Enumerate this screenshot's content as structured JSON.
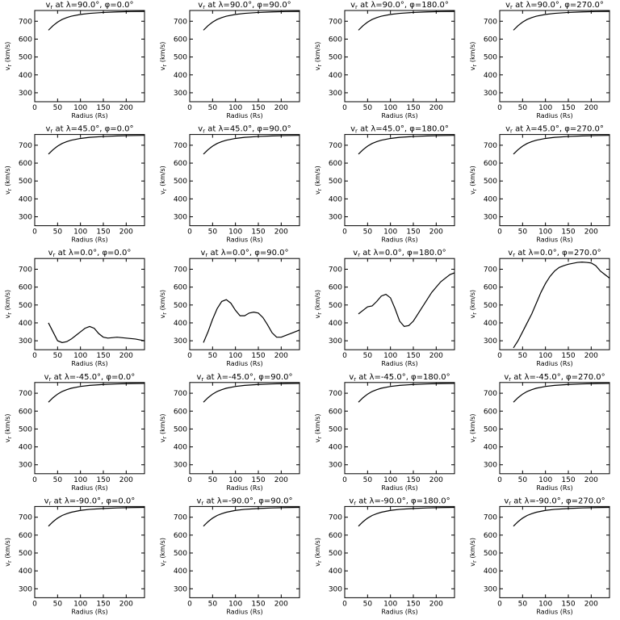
{
  "chart_data": [
    {
      "type": "line",
      "title": [
        "v",
        "r",
        " at λ=90.0°, φ=0.0°"
      ],
      "xlabel": "Radius (Rs)",
      "ylabel": [
        "v",
        "r",
        " (km/s)"
      ],
      "xlim": [
        0,
        240
      ],
      "ylim": [
        250,
        760
      ],
      "xticks": [
        0,
        50,
        100,
        150,
        200
      ],
      "yticks": [
        300,
        400,
        500,
        600,
        700
      ],
      "color": "#000000",
      "x": [
        30,
        40,
        50,
        60,
        70,
        80,
        100,
        120,
        150,
        180,
        210,
        240
      ],
      "values": [
        650,
        675,
        695,
        710,
        720,
        728,
        738,
        744,
        749,
        752,
        754,
        755
      ]
    },
    {
      "type": "line",
      "title": [
        "v",
        "r",
        " at λ=90.0°, φ=90.0°"
      ],
      "xlabel": "Radius (Rs)",
      "ylabel": [
        "v",
        "r",
        " (km/s)"
      ],
      "xlim": [
        0,
        240
      ],
      "ylim": [
        250,
        760
      ],
      "xticks": [
        0,
        50,
        100,
        150,
        200
      ],
      "yticks": [
        300,
        400,
        500,
        600,
        700
      ],
      "color": "#000000",
      "x": [
        30,
        40,
        50,
        60,
        70,
        80,
        100,
        120,
        150,
        180,
        210,
        240
      ],
      "values": [
        650,
        675,
        695,
        710,
        720,
        728,
        738,
        744,
        749,
        752,
        754,
        755
      ]
    },
    {
      "type": "line",
      "title": [
        "v",
        "r",
        " at λ=90.0°, φ=180.0°"
      ],
      "xlabel": "Radius (Rs)",
      "ylabel": [
        "v",
        "r",
        " (km/s)"
      ],
      "xlim": [
        0,
        240
      ],
      "ylim": [
        250,
        760
      ],
      "xticks": [
        0,
        50,
        100,
        150,
        200
      ],
      "yticks": [
        300,
        400,
        500,
        600,
        700
      ],
      "color": "#000000",
      "x": [
        30,
        40,
        50,
        60,
        70,
        80,
        100,
        120,
        150,
        180,
        210,
        240
      ],
      "values": [
        650,
        675,
        695,
        710,
        720,
        728,
        738,
        744,
        749,
        752,
        754,
        755
      ]
    },
    {
      "type": "line",
      "title": [
        "v",
        "r",
        " at λ=90.0°, φ=270.0°"
      ],
      "xlabel": "Radius (Rs)",
      "ylabel": [
        "v",
        "r",
        " (km/s)"
      ],
      "xlim": [
        0,
        240
      ],
      "ylim": [
        250,
        760
      ],
      "xticks": [
        0,
        50,
        100,
        150,
        200
      ],
      "yticks": [
        300,
        400,
        500,
        600,
        700
      ],
      "color": "#000000",
      "x": [
        30,
        40,
        50,
        60,
        70,
        80,
        100,
        120,
        150,
        180,
        210,
        240
      ],
      "values": [
        650,
        675,
        695,
        710,
        720,
        728,
        738,
        744,
        749,
        752,
        754,
        755
      ]
    },
    {
      "type": "line",
      "title": [
        "v",
        "r",
        " at λ=45.0°, φ=0.0°"
      ],
      "xlabel": "Radius (Rs)",
      "ylabel": [
        "v",
        "r",
        " (km/s)"
      ],
      "xlim": [
        0,
        240
      ],
      "ylim": [
        250,
        760
      ],
      "xticks": [
        0,
        50,
        100,
        150,
        200
      ],
      "yticks": [
        300,
        400,
        500,
        600,
        700
      ],
      "color": "#000000",
      "x": [
        30,
        40,
        50,
        60,
        70,
        80,
        100,
        120,
        150,
        180,
        210,
        240
      ],
      "values": [
        650,
        675,
        695,
        710,
        720,
        728,
        738,
        744,
        749,
        752,
        754,
        755
      ]
    },
    {
      "type": "line",
      "title": [
        "v",
        "r",
        " at λ=45.0°, φ=90.0°"
      ],
      "xlabel": "Radius (Rs)",
      "ylabel": [
        "v",
        "r",
        " (km/s)"
      ],
      "xlim": [
        0,
        240
      ],
      "ylim": [
        250,
        760
      ],
      "xticks": [
        0,
        50,
        100,
        150,
        200
      ],
      "yticks": [
        300,
        400,
        500,
        600,
        700
      ],
      "color": "#000000",
      "x": [
        30,
        40,
        50,
        60,
        70,
        80,
        100,
        120,
        150,
        180,
        210,
        240
      ],
      "values": [
        650,
        675,
        695,
        710,
        720,
        728,
        738,
        744,
        749,
        752,
        754,
        755
      ]
    },
    {
      "type": "line",
      "title": [
        "v",
        "r",
        " at λ=45.0°, φ=180.0°"
      ],
      "xlabel": "Radius (Rs)",
      "ylabel": [
        "v",
        "r",
        " (km/s)"
      ],
      "xlim": [
        0,
        240
      ],
      "ylim": [
        250,
        760
      ],
      "xticks": [
        0,
        50,
        100,
        150,
        200
      ],
      "yticks": [
        300,
        400,
        500,
        600,
        700
      ],
      "color": "#000000",
      "x": [
        30,
        40,
        50,
        60,
        70,
        80,
        100,
        120,
        150,
        180,
        210,
        240
      ],
      "values": [
        650,
        675,
        695,
        710,
        720,
        728,
        738,
        744,
        749,
        752,
        754,
        755
      ]
    },
    {
      "type": "line",
      "title": [
        "v",
        "r",
        " at λ=45.0°, φ=270.0°"
      ],
      "xlabel": "Radius (Rs)",
      "ylabel": [
        "v",
        "r",
        " (km/s)"
      ],
      "xlim": [
        0,
        240
      ],
      "ylim": [
        250,
        760
      ],
      "xticks": [
        0,
        50,
        100,
        150,
        200
      ],
      "yticks": [
        300,
        400,
        500,
        600,
        700
      ],
      "color": "#000000",
      "x": [
        30,
        40,
        50,
        60,
        70,
        80,
        100,
        120,
        150,
        180,
        210,
        240
      ],
      "values": [
        650,
        675,
        695,
        710,
        720,
        728,
        738,
        744,
        749,
        752,
        754,
        755
      ]
    },
    {
      "type": "line",
      "title": [
        "v",
        "r",
        " at λ=0.0°, φ=0.0°"
      ],
      "xlabel": "Radius (Rs)",
      "ylabel": [
        "v",
        "r",
        " (km/s)"
      ],
      "xlim": [
        0,
        240
      ],
      "ylim": [
        250,
        760
      ],
      "xticks": [
        0,
        50,
        100,
        150,
        200
      ],
      "yticks": [
        300,
        400,
        500,
        600,
        700
      ],
      "color": "#000000",
      "x": [
        30,
        40,
        50,
        60,
        70,
        80,
        90,
        100,
        110,
        120,
        130,
        140,
        150,
        160,
        180,
        200,
        220,
        240
      ],
      "values": [
        400,
        350,
        300,
        290,
        295,
        310,
        330,
        350,
        370,
        380,
        370,
        340,
        320,
        315,
        320,
        315,
        310,
        300
      ]
    },
    {
      "type": "line",
      "title": [
        "v",
        "r",
        " at λ=0.0°, φ=90.0°"
      ],
      "xlabel": "Radius (Rs)",
      "ylabel": [
        "v",
        "r",
        " (km/s)"
      ],
      "xlim": [
        0,
        240
      ],
      "ylim": [
        250,
        760
      ],
      "xticks": [
        0,
        50,
        100,
        150,
        200
      ],
      "yticks": [
        300,
        400,
        500,
        600,
        700
      ],
      "color": "#000000",
      "x": [
        30,
        40,
        50,
        60,
        70,
        80,
        90,
        100,
        110,
        120,
        130,
        140,
        150,
        160,
        170,
        180,
        190,
        200,
        210,
        220,
        240
      ],
      "values": [
        290,
        350,
        420,
        480,
        520,
        530,
        510,
        470,
        440,
        440,
        455,
        460,
        455,
        430,
        390,
        345,
        320,
        320,
        330,
        340,
        360
      ]
    },
    {
      "type": "line",
      "title": [
        "v",
        "r",
        " at λ=0.0°, φ=180.0°"
      ],
      "xlabel": "Radius (Rs)",
      "ylabel": [
        "v",
        "r",
        " (km/s)"
      ],
      "xlim": [
        0,
        240
      ],
      "ylim": [
        250,
        760
      ],
      "xticks": [
        0,
        50,
        100,
        150,
        200
      ],
      "yticks": [
        300,
        400,
        500,
        600,
        700
      ],
      "color": "#000000",
      "x": [
        30,
        40,
        50,
        60,
        70,
        80,
        90,
        100,
        110,
        120,
        130,
        140,
        150,
        160,
        170,
        180,
        190,
        200,
        210,
        220,
        230,
        240
      ],
      "values": [
        450,
        470,
        490,
        495,
        520,
        550,
        560,
        540,
        480,
        410,
        380,
        385,
        410,
        450,
        490,
        530,
        570,
        600,
        630,
        650,
        670,
        680
      ]
    },
    {
      "type": "line",
      "title": [
        "v",
        "r",
        " at λ=0.0°, φ=270.0°"
      ],
      "xlabel": "Radius (Rs)",
      "ylabel": [
        "v",
        "r",
        " (km/s)"
      ],
      "xlim": [
        0,
        240
      ],
      "ylim": [
        250,
        760
      ],
      "xticks": [
        0,
        50,
        100,
        150,
        200
      ],
      "yticks": [
        300,
        400,
        500,
        600,
        700
      ],
      "color": "#000000",
      "x": [
        30,
        40,
        50,
        60,
        70,
        80,
        90,
        100,
        110,
        120,
        130,
        140,
        150,
        160,
        170,
        180,
        190,
        200,
        210,
        220,
        230,
        240
      ],
      "values": [
        260,
        300,
        350,
        400,
        450,
        510,
        570,
        620,
        660,
        690,
        710,
        720,
        728,
        733,
        738,
        740,
        738,
        735,
        720,
        690,
        670,
        650
      ]
    },
    {
      "type": "line",
      "title": [
        "v",
        "r",
        " at λ=-45.0°, φ=0.0°"
      ],
      "xlabel": "Radius (Rs)",
      "ylabel": [
        "v",
        "r",
        " (km/s)"
      ],
      "xlim": [
        0,
        240
      ],
      "ylim": [
        250,
        760
      ],
      "xticks": [
        0,
        50,
        100,
        150,
        200
      ],
      "yticks": [
        300,
        400,
        500,
        600,
        700
      ],
      "color": "#000000",
      "x": [
        30,
        40,
        50,
        60,
        70,
        80,
        100,
        120,
        150,
        180,
        210,
        240
      ],
      "values": [
        650,
        675,
        695,
        710,
        720,
        728,
        738,
        744,
        749,
        752,
        754,
        755
      ]
    },
    {
      "type": "line",
      "title": [
        "v",
        "r",
        " at λ=-45.0°, φ=90.0°"
      ],
      "xlabel": "Radius (Rs)",
      "ylabel": [
        "v",
        "r",
        " (km/s)"
      ],
      "xlim": [
        0,
        240
      ],
      "ylim": [
        250,
        760
      ],
      "xticks": [
        0,
        50,
        100,
        150,
        200
      ],
      "yticks": [
        300,
        400,
        500,
        600,
        700
      ],
      "color": "#000000",
      "x": [
        30,
        40,
        50,
        60,
        70,
        80,
        100,
        120,
        150,
        180,
        210,
        240
      ],
      "values": [
        650,
        675,
        695,
        710,
        720,
        728,
        738,
        744,
        749,
        752,
        754,
        755
      ]
    },
    {
      "type": "line",
      "title": [
        "v",
        "r",
        " at λ=-45.0°, φ=180.0°"
      ],
      "xlabel": "Radius (Rs)",
      "ylabel": [
        "v",
        "r",
        " (km/s)"
      ],
      "xlim": [
        0,
        240
      ],
      "ylim": [
        250,
        760
      ],
      "xticks": [
        0,
        50,
        100,
        150,
        200
      ],
      "yticks": [
        300,
        400,
        500,
        600,
        700
      ],
      "color": "#000000",
      "x": [
        30,
        40,
        50,
        60,
        70,
        80,
        100,
        120,
        150,
        180,
        210,
        240
      ],
      "values": [
        650,
        675,
        695,
        710,
        720,
        728,
        738,
        744,
        749,
        752,
        754,
        755
      ]
    },
    {
      "type": "line",
      "title": [
        "v",
        "r",
        " at λ=-45.0°, φ=270.0°"
      ],
      "xlabel": "Radius (Rs)",
      "ylabel": [
        "v",
        "r",
        " (km/s)"
      ],
      "xlim": [
        0,
        240
      ],
      "ylim": [
        250,
        760
      ],
      "xticks": [
        0,
        50,
        100,
        150,
        200
      ],
      "yticks": [
        300,
        400,
        500,
        600,
        700
      ],
      "color": "#000000",
      "x": [
        30,
        40,
        50,
        60,
        70,
        80,
        100,
        120,
        150,
        180,
        210,
        240
      ],
      "values": [
        650,
        675,
        695,
        710,
        720,
        728,
        738,
        744,
        749,
        752,
        754,
        755
      ]
    },
    {
      "type": "line",
      "title": [
        "v",
        "r",
        " at λ=-90.0°, φ=0.0°"
      ],
      "xlabel": "Radius (Rs)",
      "ylabel": [
        "v",
        "r",
        " (km/s)"
      ],
      "xlim": [
        0,
        240
      ],
      "ylim": [
        250,
        760
      ],
      "xticks": [
        0,
        50,
        100,
        150,
        200
      ],
      "yticks": [
        300,
        400,
        500,
        600,
        700
      ],
      "color": "#000000",
      "x": [
        30,
        40,
        50,
        60,
        70,
        80,
        100,
        120,
        150,
        180,
        210,
        240
      ],
      "values": [
        650,
        675,
        695,
        710,
        720,
        728,
        738,
        744,
        749,
        752,
        754,
        755
      ]
    },
    {
      "type": "line",
      "title": [
        "v",
        "r",
        " at λ=-90.0°, φ=90.0°"
      ],
      "xlabel": "Radius (Rs)",
      "ylabel": [
        "v",
        "r",
        " (km/s)"
      ],
      "xlim": [
        0,
        240
      ],
      "ylim": [
        250,
        760
      ],
      "xticks": [
        0,
        50,
        100,
        150,
        200
      ],
      "yticks": [
        300,
        400,
        500,
        600,
        700
      ],
      "color": "#000000",
      "x": [
        30,
        40,
        50,
        60,
        70,
        80,
        100,
        120,
        150,
        180,
        210,
        240
      ],
      "values": [
        650,
        675,
        695,
        710,
        720,
        728,
        738,
        744,
        749,
        752,
        754,
        755
      ]
    },
    {
      "type": "line",
      "title": [
        "v",
        "r",
        " at λ=-90.0°, φ=180.0°"
      ],
      "xlabel": "Radius (Rs)",
      "ylabel": [
        "v",
        "r",
        " (km/s)"
      ],
      "xlim": [
        0,
        240
      ],
      "ylim": [
        250,
        760
      ],
      "xticks": [
        0,
        50,
        100,
        150,
        200
      ],
      "yticks": [
        300,
        400,
        500,
        600,
        700
      ],
      "color": "#000000",
      "x": [
        30,
        40,
        50,
        60,
        70,
        80,
        100,
        120,
        150,
        180,
        210,
        240
      ],
      "values": [
        650,
        675,
        695,
        710,
        720,
        728,
        738,
        744,
        749,
        752,
        754,
        755
      ]
    },
    {
      "type": "line",
      "title": [
        "v",
        "r",
        " at λ=-90.0°, φ=270.0°"
      ],
      "xlabel": "Radius (Rs)",
      "ylabel": [
        "v",
        "r",
        " (km/s)"
      ],
      "xlim": [
        0,
        240
      ],
      "ylim": [
        250,
        760
      ],
      "xticks": [
        0,
        50,
        100,
        150,
        200
      ],
      "yticks": [
        300,
        400,
        500,
        600,
        700
      ],
      "color": "#000000",
      "x": [
        30,
        40,
        50,
        60,
        70,
        80,
        100,
        120,
        150,
        180,
        210,
        240
      ],
      "values": [
        650,
        675,
        695,
        710,
        720,
        728,
        738,
        744,
        749,
        752,
        754,
        755
      ]
    }
  ]
}
